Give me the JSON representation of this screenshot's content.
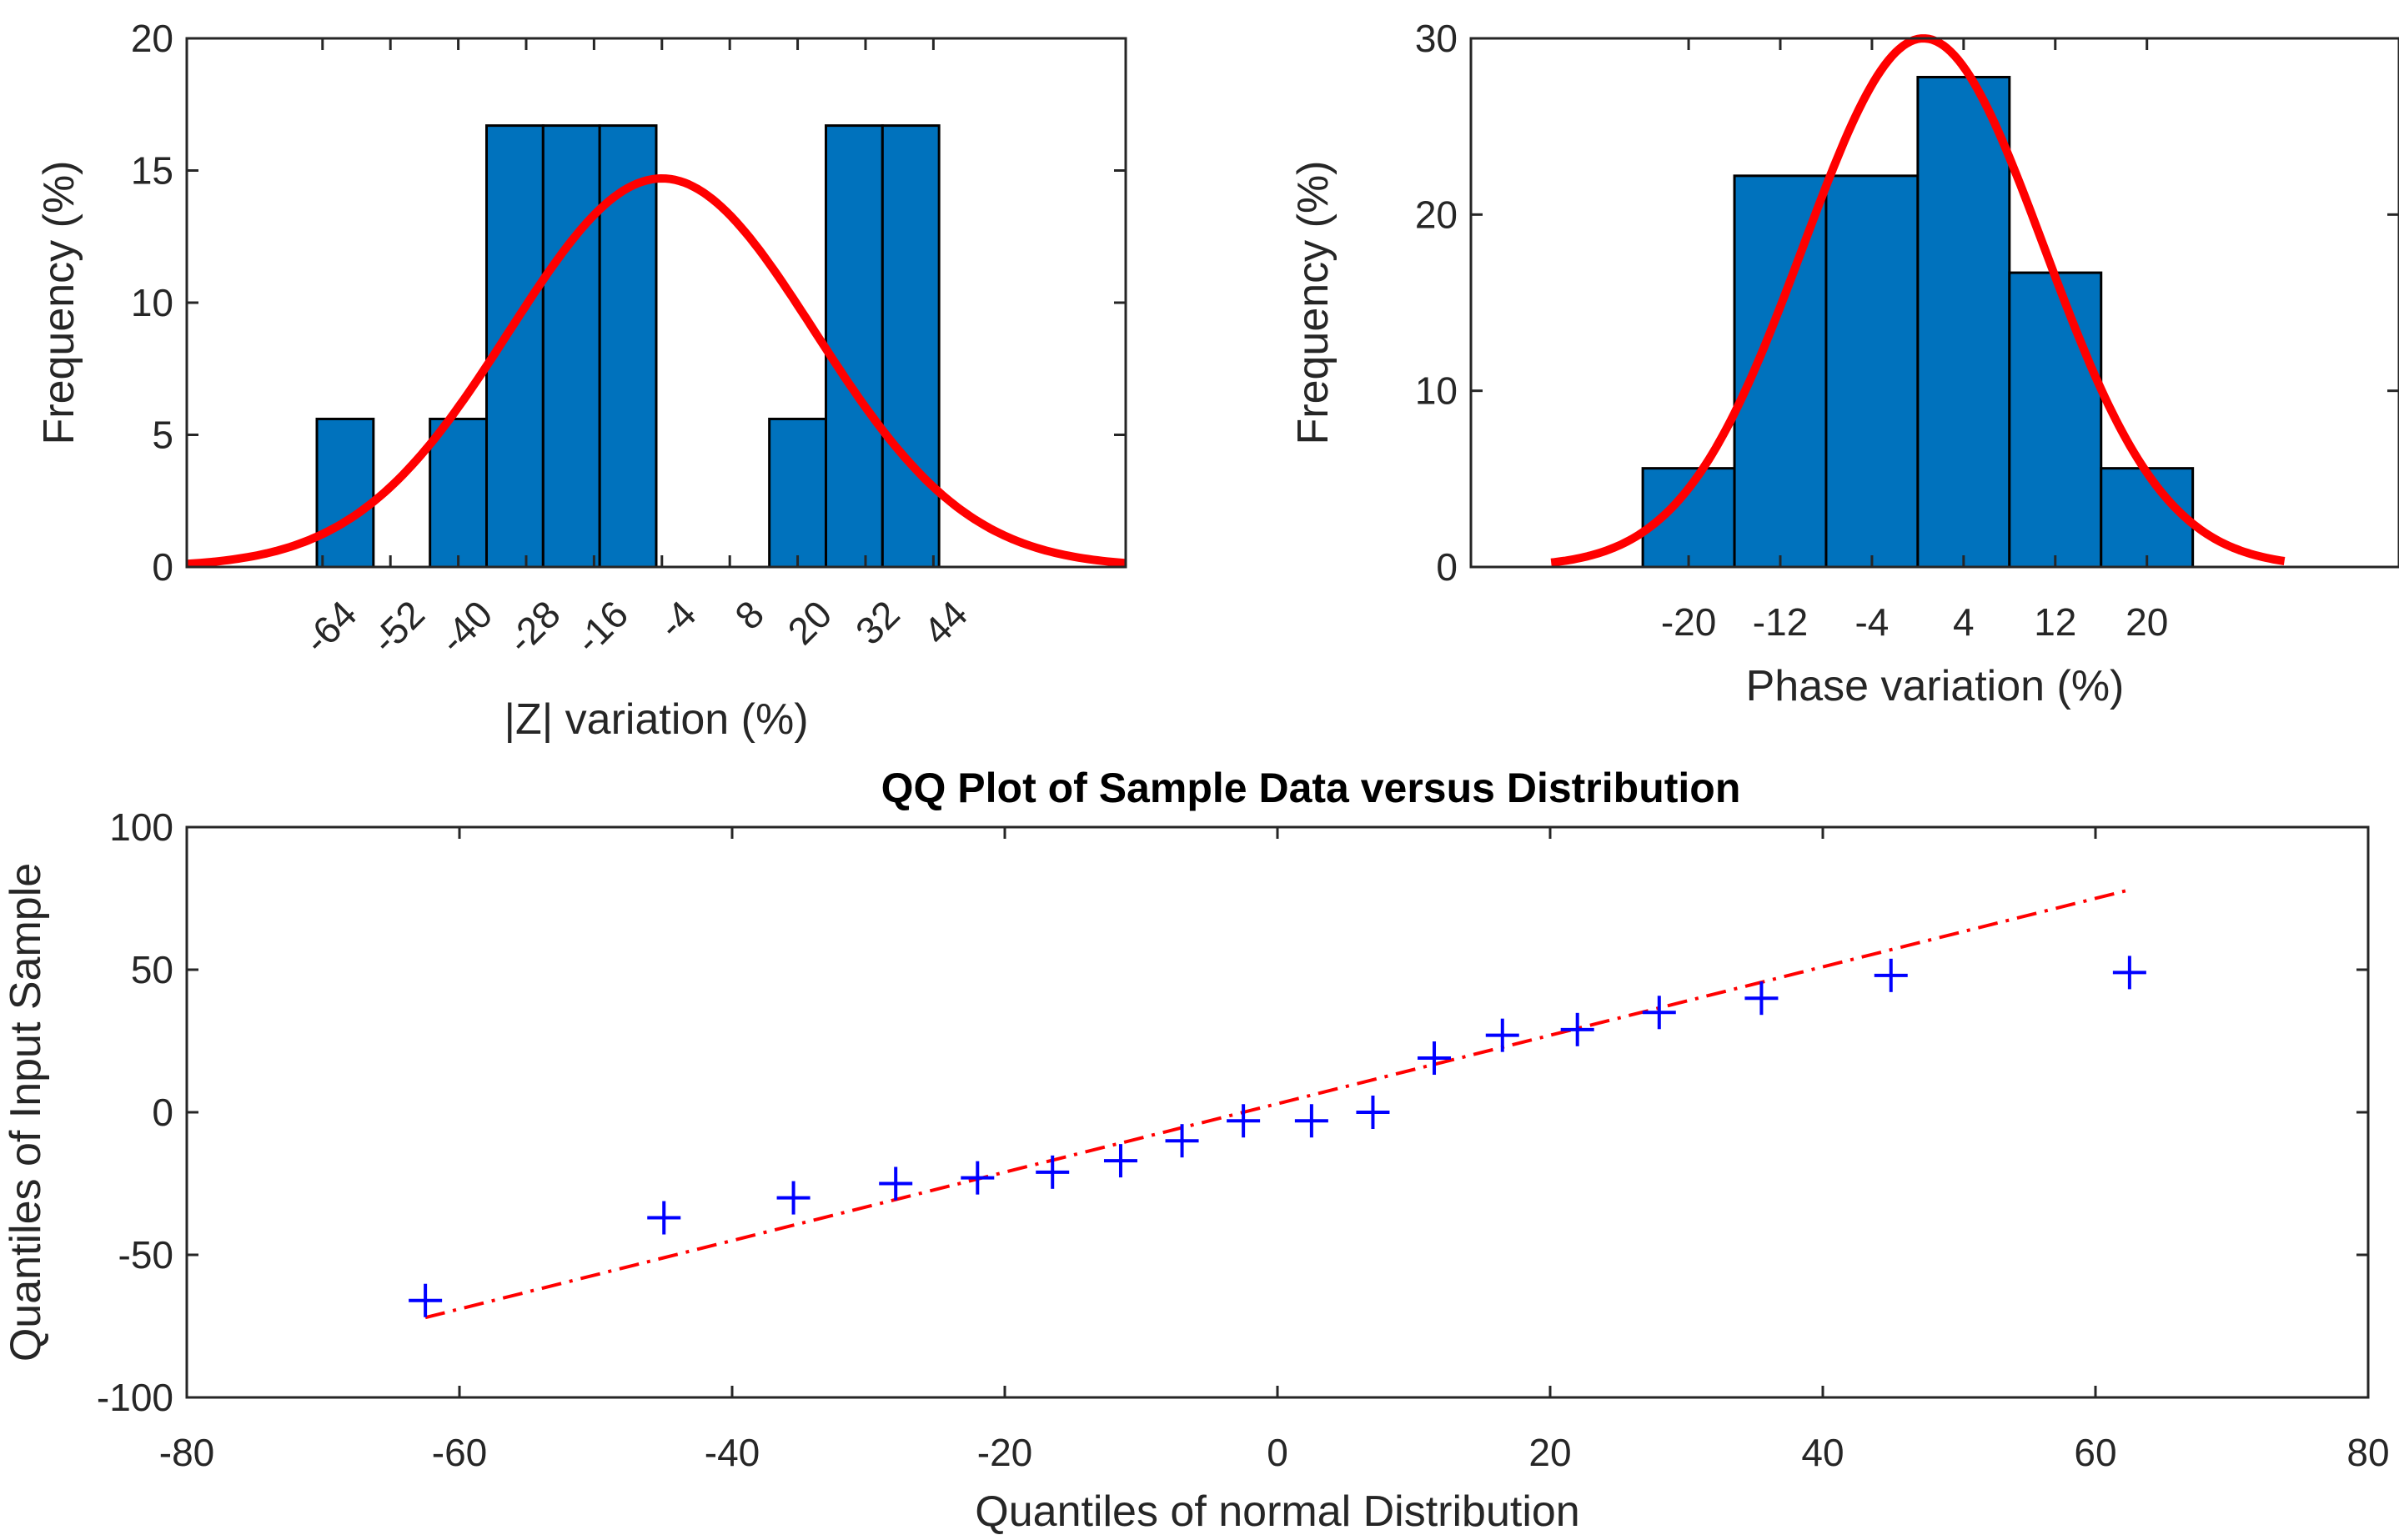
{
  "chart_data": [
    {
      "id": "z-hist",
      "type": "bar",
      "subtype": "histogram-with-normal-fit",
      "title": "",
      "xlabel": "|Z| variation (%)",
      "ylabel": "Frequency (%)",
      "xlim": [
        -88,
        78
      ],
      "ylim": [
        0,
        20
      ],
      "xticks": [
        -64,
        -52,
        -40,
        -28,
        -16,
        -4,
        8,
        20,
        32,
        44
      ],
      "xtick_labels": [
        "-64",
        "-52",
        "-40",
        "-28",
        "-16",
        "-4",
        "8",
        "20",
        "32",
        "44"
      ],
      "xtick_rotation": -45,
      "yticks": [
        0,
        5,
        10,
        15,
        20
      ],
      "ytick_labels": [
        "0",
        "5",
        "10",
        "15",
        "20"
      ],
      "bin_width": 10,
      "bins": [
        {
          "x0": -65,
          "x1": -55,
          "value": 5.6
        },
        {
          "x0": -55,
          "x1": -45,
          "value": 0
        },
        {
          "x0": -45,
          "x1": -35,
          "value": 5.6
        },
        {
          "x0": -35,
          "x1": -25,
          "value": 16.7
        },
        {
          "x0": -25,
          "x1": -15,
          "value": 16.7
        },
        {
          "x0": -15,
          "x1": -5,
          "value": 16.7
        },
        {
          "x0": -5,
          "x1": 5,
          "value": 0
        },
        {
          "x0": 5,
          "x1": 15,
          "value": 0
        },
        {
          "x0": 15,
          "x1": 25,
          "value": 5.6
        },
        {
          "x0": 25,
          "x1": 35,
          "value": 16.7
        },
        {
          "x0": 35,
          "x1": 45,
          "value": 16.7
        }
      ],
      "fit": {
        "type": "normal",
        "mean": -4,
        "sd": 27,
        "peak": 14.7,
        "x_range": [
          -88,
          78
        ]
      },
      "colors": {
        "bar": "#0072BD",
        "fit": "#FF0000"
      }
    },
    {
      "id": "phase-hist",
      "type": "bar",
      "subtype": "histogram-with-normal-fit",
      "title": "",
      "xlabel": "Phase variation (%)",
      "ylabel": "Frequency (%)",
      "xlim": [
        -39,
        42
      ],
      "ylim": [
        0,
        30
      ],
      "xticks": [
        -20,
        -12,
        -4,
        4,
        12,
        20
      ],
      "xtick_labels": [
        "-20",
        "-12",
        "-4",
        "4",
        "12",
        "20"
      ],
      "yticks": [
        0,
        10,
        20,
        30
      ],
      "ytick_labels": [
        "0",
        "10",
        "20",
        "30"
      ],
      "bin_width": 8,
      "bins": [
        {
          "x0": -24,
          "x1": -16,
          "value": 5.6
        },
        {
          "x0": -16,
          "x1": -8,
          "value": 22.2
        },
        {
          "x0": -8,
          "x1": 0,
          "value": 22.2
        },
        {
          "x0": 0,
          "x1": 8,
          "value": 27.8
        },
        {
          "x0": 8,
          "x1": 16,
          "value": 16.7
        },
        {
          "x0": 16,
          "x1": 24,
          "value": 5.6
        }
      ],
      "fit": {
        "type": "normal",
        "mean": 0.5,
        "sd": 10.5,
        "peak": 30,
        "x_range": [
          -32,
          32
        ]
      },
      "colors": {
        "bar": "#0072BD",
        "fit": "#FF0000"
      }
    },
    {
      "id": "qq-plot",
      "type": "scatter",
      "title": "QQ Plot of Sample Data versus Distribution",
      "xlabel": "Quantiles of normal Distribution",
      "ylabel": "Quantiles of Input Sample",
      "xlim": [
        -80,
        80
      ],
      "ylim": [
        -100,
        100
      ],
      "xticks": [
        -80,
        -60,
        -40,
        -20,
        0,
        20,
        40,
        60,
        80
      ],
      "xtick_labels": [
        "-80",
        "-60",
        "-40",
        "-20",
        "0",
        "20",
        "40",
        "60",
        "80"
      ],
      "yticks": [
        -100,
        -50,
        0,
        50,
        100
      ],
      "ytick_labels": [
        "-100",
        "-50",
        "0",
        "50",
        "100"
      ],
      "points": [
        {
          "x": -62.5,
          "y": -66
        },
        {
          "x": -45,
          "y": -37
        },
        {
          "x": -35.5,
          "y": -30
        },
        {
          "x": -28,
          "y": -25
        },
        {
          "x": -22,
          "y": -23
        },
        {
          "x": -16.5,
          "y": -21
        },
        {
          "x": -11.5,
          "y": -17
        },
        {
          "x": -7,
          "y": -10
        },
        {
          "x": -2.5,
          "y": -3
        },
        {
          "x": 2.5,
          "y": -3
        },
        {
          "x": 7,
          "y": 0
        },
        {
          "x": 11.5,
          "y": 19
        },
        {
          "x": 16.5,
          "y": 27
        },
        {
          "x": 22,
          "y": 29
        },
        {
          "x": 28,
          "y": 35
        },
        {
          "x": 35.5,
          "y": 40
        },
        {
          "x": 45,
          "y": 48
        },
        {
          "x": 62.5,
          "y": 49
        }
      ],
      "reference_line": {
        "x": [
          -62.5,
          62.5
        ],
        "y": [
          -72,
          78
        ],
        "style": "dash-dot"
      },
      "colors": {
        "marker": "#0000FF",
        "line": "#FF0000"
      }
    }
  ]
}
